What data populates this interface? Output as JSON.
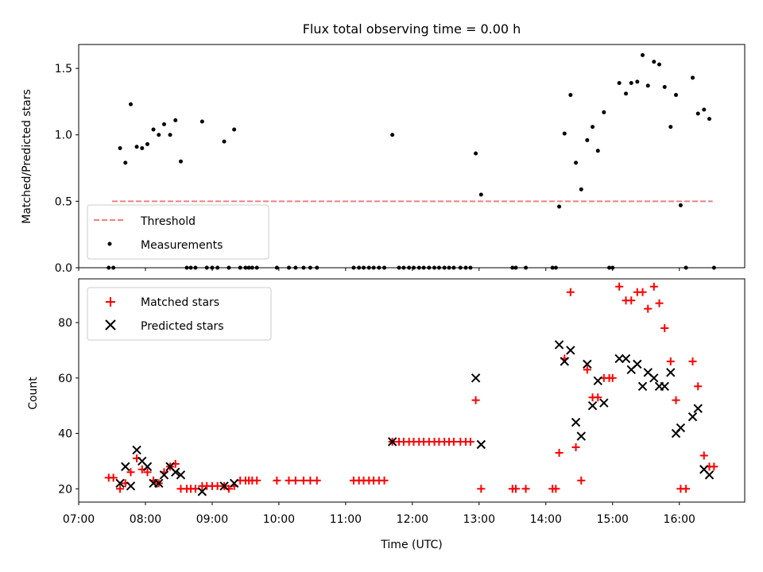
{
  "chart_data": [
    {
      "type": "scatter",
      "title": "Flux total observing time = 0.00 h",
      "ylabel": "Matched/Predicted stars",
      "xlabel": "",
      "xlim": [
        7.0,
        16.98
      ],
      "ylim": [
        0.0,
        1.68
      ],
      "yticks": [
        0.0,
        0.5,
        1.0,
        1.5
      ],
      "ytick_labels": [
        "0.0",
        "0.5",
        "1.0",
        "1.5"
      ],
      "legend": [
        {
          "label": "Threshold",
          "color": "#f08080",
          "marker": "dashed-line"
        },
        {
          "label": "Measurements",
          "color": "#000000",
          "marker": "dot"
        }
      ],
      "legend_position": "lower-left",
      "threshold": {
        "value": 0.5,
        "x_range": [
          7.5,
          16.5
        ],
        "color": "#f08080"
      },
      "series": [
        {
          "name": "Measurements",
          "color": "#000000",
          "points": [
            [
              7.45,
              0.0
            ],
            [
              7.52,
              0.0
            ],
            [
              7.62,
              0.9
            ],
            [
              7.7,
              0.79
            ],
            [
              7.78,
              1.23
            ],
            [
              7.87,
              0.91
            ],
            [
              7.95,
              0.9
            ],
            [
              8.03,
              0.93
            ],
            [
              8.12,
              1.04
            ],
            [
              8.2,
              1.0
            ],
            [
              8.28,
              1.08
            ],
            [
              8.37,
              1.0
            ],
            [
              8.45,
              1.11
            ],
            [
              8.53,
              0.8
            ],
            [
              8.62,
              0.0
            ],
            [
              8.68,
              0.0
            ],
            [
              8.75,
              0.0
            ],
            [
              8.85,
              1.1
            ],
            [
              8.92,
              0.0
            ],
            [
              9.0,
              0.0
            ],
            [
              9.08,
              0.0
            ],
            [
              9.18,
              0.95
            ],
            [
              9.25,
              0.0
            ],
            [
              9.33,
              1.04
            ],
            [
              9.42,
              0.0
            ],
            [
              9.5,
              0.0
            ],
            [
              9.55,
              0.0
            ],
            [
              9.6,
              0.0
            ],
            [
              9.67,
              0.0
            ],
            [
              9.97,
              0.0
            ],
            [
              10.15,
              0.0
            ],
            [
              10.25,
              0.0
            ],
            [
              10.37,
              0.0
            ],
            [
              10.47,
              0.0
            ],
            [
              10.57,
              0.0
            ],
            [
              11.12,
              0.0
            ],
            [
              11.2,
              0.0
            ],
            [
              11.27,
              0.0
            ],
            [
              11.35,
              0.0
            ],
            [
              11.42,
              0.0
            ],
            [
              11.5,
              0.0
            ],
            [
              11.58,
              0.0
            ],
            [
              11.7,
              1.0
            ],
            [
              11.8,
              0.0
            ],
            [
              11.87,
              0.0
            ],
            [
              11.95,
              0.0
            ],
            [
              12.02,
              0.0
            ],
            [
              12.1,
              0.0
            ],
            [
              12.17,
              0.0
            ],
            [
              12.25,
              0.0
            ],
            [
              12.33,
              0.0
            ],
            [
              12.4,
              0.0
            ],
            [
              12.48,
              0.0
            ],
            [
              12.55,
              0.0
            ],
            [
              12.62,
              0.0
            ],
            [
              12.72,
              0.0
            ],
            [
              12.8,
              0.0
            ],
            [
              12.87,
              0.0
            ],
            [
              12.95,
              0.86
            ],
            [
              13.03,
              0.55
            ],
            [
              13.5,
              0.0
            ],
            [
              13.55,
              0.0
            ],
            [
              13.7,
              0.0
            ],
            [
              14.1,
              0.0
            ],
            [
              14.15,
              0.0
            ],
            [
              14.2,
              0.46
            ],
            [
              14.28,
              1.01
            ],
            [
              14.37,
              1.3
            ],
            [
              14.45,
              0.79
            ],
            [
              14.53,
              0.59
            ],
            [
              14.62,
              0.96
            ],
            [
              14.7,
              1.06
            ],
            [
              14.78,
              0.88
            ],
            [
              14.87,
              1.17
            ],
            [
              14.95,
              0.0
            ],
            [
              15.0,
              0.0
            ],
            [
              15.1,
              1.39
            ],
            [
              15.2,
              1.31
            ],
            [
              15.28,
              1.39
            ],
            [
              15.37,
              1.4
            ],
            [
              15.45,
              1.6
            ],
            [
              15.53,
              1.37
            ],
            [
              15.62,
              1.55
            ],
            [
              15.7,
              1.53
            ],
            [
              15.78,
              1.36
            ],
            [
              15.87,
              1.06
            ],
            [
              15.95,
              1.3
            ],
            [
              16.02,
              0.47
            ],
            [
              16.1,
              0.0
            ],
            [
              16.2,
              1.43
            ],
            [
              16.28,
              1.16
            ],
            [
              16.37,
              1.19
            ],
            [
              16.45,
              1.12
            ],
            [
              16.52,
              0.0
            ]
          ]
        }
      ]
    },
    {
      "type": "scatter",
      "title": "",
      "ylabel": "Count",
      "xlabel": "Time (UTC)",
      "xlim": [
        7.0,
        16.98
      ],
      "ylim": [
        15.2,
        95.8
      ],
      "xticks": [
        7,
        8,
        9,
        10,
        11,
        12,
        13,
        14,
        15,
        16
      ],
      "xtick_labels": [
        "07:00",
        "08:00",
        "09:00",
        "10:00",
        "11:00",
        "12:00",
        "13:00",
        "14:00",
        "15:00",
        "16:00"
      ],
      "yticks": [
        20,
        40,
        60,
        80
      ],
      "ytick_labels": [
        "20",
        "40",
        "60",
        "80"
      ],
      "legend": [
        {
          "label": "Matched stars",
          "color": "#ff0000",
          "marker": "plus"
        },
        {
          "label": "Predicted stars",
          "color": "#000000",
          "marker": "x"
        }
      ],
      "legend_position": "upper-left",
      "series": [
        {
          "name": "Matched stars",
          "color": "#ff0000",
          "points": [
            [
              7.45,
              24
            ],
            [
              7.52,
              24
            ],
            [
              7.62,
              20
            ],
            [
              7.7,
              22
            ],
            [
              7.78,
              26
            ],
            [
              7.87,
              31
            ],
            [
              7.95,
              27
            ],
            [
              8.03,
              26
            ],
            [
              8.12,
              23
            ],
            [
              8.2,
              22
            ],
            [
              8.28,
              26
            ],
            [
              8.37,
              28
            ],
            [
              8.45,
              29
            ],
            [
              8.53,
              20
            ],
            [
              8.62,
              20
            ],
            [
              8.68,
              20
            ],
            [
              8.75,
              20
            ],
            [
              8.85,
              21
            ],
            [
              8.92,
              21
            ],
            [
              9.0,
              21
            ],
            [
              9.08,
              21
            ],
            [
              9.18,
              21
            ],
            [
              9.25,
              20
            ],
            [
              9.33,
              21
            ],
            [
              9.42,
              23
            ],
            [
              9.5,
              23
            ],
            [
              9.55,
              23
            ],
            [
              9.6,
              23
            ],
            [
              9.67,
              23
            ],
            [
              9.97,
              23
            ],
            [
              10.15,
              23
            ],
            [
              10.25,
              23
            ],
            [
              10.37,
              23
            ],
            [
              10.47,
              23
            ],
            [
              10.57,
              23
            ],
            [
              11.12,
              23
            ],
            [
              11.2,
              23
            ],
            [
              11.27,
              23
            ],
            [
              11.35,
              23
            ],
            [
              11.42,
              23
            ],
            [
              11.5,
              23
            ],
            [
              11.58,
              23
            ],
            [
              11.7,
              37
            ],
            [
              11.8,
              37
            ],
            [
              11.87,
              37
            ],
            [
              11.95,
              37
            ],
            [
              12.02,
              37
            ],
            [
              12.1,
              37
            ],
            [
              12.17,
              37
            ],
            [
              12.25,
              37
            ],
            [
              12.33,
              37
            ],
            [
              12.4,
              37
            ],
            [
              12.48,
              37
            ],
            [
              12.55,
              37
            ],
            [
              12.62,
              37
            ],
            [
              12.72,
              37
            ],
            [
              12.8,
              37
            ],
            [
              12.87,
              37
            ],
            [
              12.95,
              52
            ],
            [
              13.03,
              20
            ],
            [
              13.5,
              20
            ],
            [
              13.55,
              20
            ],
            [
              13.7,
              20
            ],
            [
              14.1,
              20
            ],
            [
              14.15,
              20
            ],
            [
              14.2,
              33
            ],
            [
              14.28,
              67
            ],
            [
              14.37,
              91
            ],
            [
              14.45,
              35
            ],
            [
              14.53,
              23
            ],
            [
              14.62,
              63
            ],
            [
              14.7,
              53
            ],
            [
              14.78,
              53
            ],
            [
              14.87,
              60
            ],
            [
              14.95,
              60
            ],
            [
              15.0,
              60
            ],
            [
              15.1,
              93
            ],
            [
              15.2,
              88
            ],
            [
              15.28,
              88
            ],
            [
              15.37,
              91
            ],
            [
              15.45,
              91
            ],
            [
              15.53,
              85
            ],
            [
              15.62,
              93
            ],
            [
              15.7,
              87
            ],
            [
              15.78,
              78
            ],
            [
              15.87,
              66
            ],
            [
              15.95,
              52
            ],
            [
              16.02,
              20
            ],
            [
              16.1,
              20
            ],
            [
              16.2,
              66
            ],
            [
              16.28,
              57
            ],
            [
              16.37,
              32
            ],
            [
              16.45,
              28
            ],
            [
              16.52,
              28
            ]
          ]
        },
        {
          "name": "Predicted stars",
          "color": "#000000",
          "points": [
            [
              7.62,
              22
            ],
            [
              7.7,
              28
            ],
            [
              7.78,
              21
            ],
            [
              7.87,
              34
            ],
            [
              7.95,
              30
            ],
            [
              8.03,
              28
            ],
            [
              8.12,
              22
            ],
            [
              8.2,
              22
            ],
            [
              8.28,
              25
            ],
            [
              8.37,
              28
            ],
            [
              8.45,
              26
            ],
            [
              8.53,
              25
            ],
            [
              8.85,
              19
            ],
            [
              9.18,
              21
            ],
            [
              9.33,
              22
            ],
            [
              11.7,
              37
            ],
            [
              12.95,
              60
            ],
            [
              13.03,
              36
            ],
            [
              14.2,
              72
            ],
            [
              14.28,
              66
            ],
            [
              14.37,
              70
            ],
            [
              14.45,
              44
            ],
            [
              14.53,
              39
            ],
            [
              14.62,
              65
            ],
            [
              14.7,
              50
            ],
            [
              14.78,
              59
            ],
            [
              14.87,
              51
            ],
            [
              15.1,
              67
            ],
            [
              15.2,
              67
            ],
            [
              15.28,
              63
            ],
            [
              15.37,
              65
            ],
            [
              15.45,
              57
            ],
            [
              15.53,
              62
            ],
            [
              15.62,
              60
            ],
            [
              15.7,
              57
            ],
            [
              15.78,
              57
            ],
            [
              15.87,
              62
            ],
            [
              15.95,
              40
            ],
            [
              16.02,
              42
            ],
            [
              16.2,
              46
            ],
            [
              16.28,
              49
            ],
            [
              16.37,
              27
            ],
            [
              16.45,
              25
            ]
          ]
        }
      ]
    }
  ]
}
